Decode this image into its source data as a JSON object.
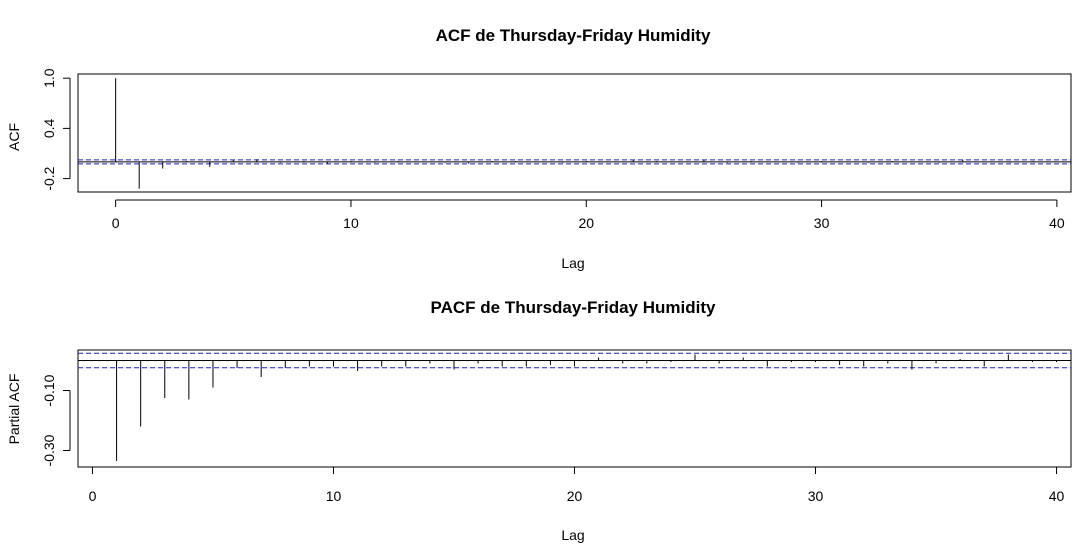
{
  "chart_data": [
    {
      "type": "bar",
      "title": "ACF de Thursday-Friday Humidity",
      "xlabel": "Lag",
      "ylabel": "ACF",
      "xlim": [
        -1.6,
        40.6
      ],
      "ylim": [
        -0.36,
        1.05
      ],
      "xticks": [
        0,
        10,
        20,
        30,
        40
      ],
      "yticks": [
        -0.2,
        0.4,
        1.0
      ],
      "ytick_labels": [
        "-0.2",
        "0.4",
        "1.0"
      ],
      "confidence_bound": 0.024,
      "grid": false,
      "series": [
        {
          "lags": [
            0,
            1,
            2,
            3,
            4,
            5,
            6,
            7,
            8,
            9,
            10,
            11,
            12,
            13,
            14,
            15,
            16,
            17,
            18,
            19,
            20,
            21,
            22,
            23,
            24,
            25,
            26,
            27,
            28,
            29,
            30,
            31,
            32,
            33,
            34,
            35,
            36,
            37,
            38,
            39,
            40
          ],
          "values": [
            1.0,
            -0.32,
            -0.08,
            0.01,
            -0.06,
            0.02,
            0.03,
            -0.01,
            0.01,
            -0.02,
            0.01,
            -0.01,
            0.01,
            0.0,
            -0.01,
            -0.02,
            0.01,
            0.01,
            0.0,
            -0.01,
            0.01,
            0.0,
            0.02,
            0.01,
            0.0,
            0.02,
            -0.01,
            0.01,
            0.0,
            -0.01,
            0.01,
            0.0,
            -0.01,
            0.01,
            0.0,
            -0.01,
            0.02,
            0.0,
            -0.01,
            0.01,
            0.0
          ]
        }
      ]
    },
    {
      "type": "bar",
      "title": "PACF de Thursday-Friday Humidity",
      "xlabel": "Lag",
      "ylabel": "Partial ACF",
      "xlim": [
        -0.6,
        40.6
      ],
      "ylim": [
        -0.355,
        0.035
      ],
      "xticks": [
        0,
        10,
        20,
        30,
        40
      ],
      "yticks": [
        -0.3,
        -0.1
      ],
      "ytick_labels": [
        "-0.30",
        "-0.10"
      ],
      "confidence_bound": 0.024,
      "grid": false,
      "series": [
        {
          "lags": [
            1,
            2,
            3,
            4,
            5,
            6,
            7,
            8,
            9,
            10,
            11,
            12,
            13,
            14,
            15,
            16,
            17,
            18,
            19,
            20,
            21,
            22,
            23,
            24,
            25,
            26,
            27,
            28,
            29,
            30,
            31,
            32,
            33,
            34,
            35,
            36,
            37,
            38,
            39,
            40
          ],
          "values": [
            -0.335,
            -0.22,
            -0.125,
            -0.13,
            -0.09,
            -0.025,
            -0.055,
            -0.025,
            -0.02,
            -0.02,
            -0.035,
            -0.02,
            -0.02,
            -0.01,
            -0.03,
            -0.01,
            -0.02,
            -0.02,
            -0.015,
            -0.02,
            0.01,
            -0.01,
            -0.01,
            -0.005,
            0.02,
            -0.01,
            0.01,
            -0.02,
            -0.005,
            -0.005,
            -0.015,
            -0.02,
            -0.01,
            -0.03,
            -0.01,
            0.005,
            -0.02,
            0.02,
            -0.005,
            -0.005
          ]
        }
      ]
    }
  ],
  "colors": {
    "ink": "#000000",
    "confidence_line": "#1f1fd0"
  }
}
